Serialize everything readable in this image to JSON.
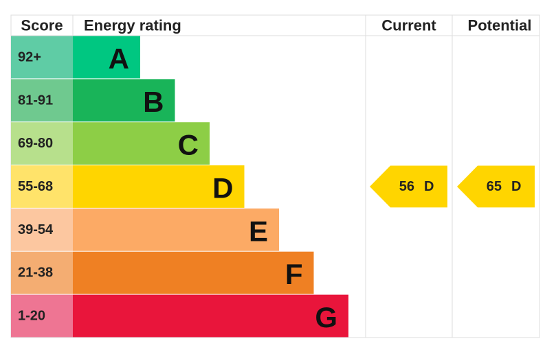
{
  "header": {
    "score": "Score",
    "rating": "Energy rating",
    "current": "Current",
    "potential": "Potential"
  },
  "bands": [
    {
      "score": "92+",
      "letter": "A"
    },
    {
      "score": "81-91",
      "letter": "B"
    },
    {
      "score": "69-80",
      "letter": "C"
    },
    {
      "score": "55-68",
      "letter": "D"
    },
    {
      "score": "39-54",
      "letter": "E"
    },
    {
      "score": "21-38",
      "letter": "F"
    },
    {
      "score": "1-20",
      "letter": "G"
    }
  ],
  "current": {
    "value": 56,
    "band": "D"
  },
  "potential": {
    "value": 65,
    "band": "D"
  }
}
